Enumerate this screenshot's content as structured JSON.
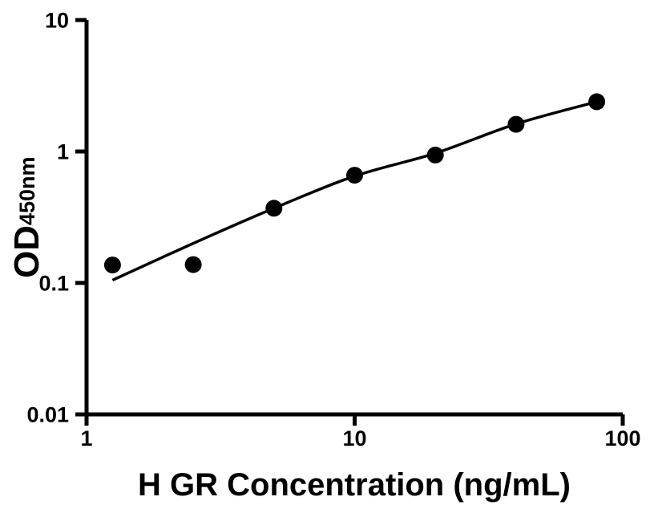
{
  "figure": {
    "background": "#ffffff",
    "foreground": "#000000"
  },
  "chart_data": {
    "type": "scatter",
    "title": "",
    "xlabel": "H GR Concentration (ng/mL)",
    "ylabel": {
      "main": "OD",
      "subscript": "450nm"
    },
    "x_scale": "log",
    "y_scale": "log",
    "xlim": [
      1,
      100
    ],
    "ylim": [
      0.01,
      10
    ],
    "x_ticks": {
      "values": [
        1,
        10,
        100
      ],
      "labels": [
        "1",
        "10",
        "100"
      ]
    },
    "y_ticks": {
      "values": [
        0.01,
        0.1,
        1,
        10
      ],
      "labels": [
        "0.01",
        "0.1",
        "1",
        "10"
      ]
    },
    "grid": false,
    "legend": null,
    "marker_color": "#000000",
    "line_color": "#000000",
    "series": [
      {
        "name": "standard-points",
        "type": "scatter",
        "marker": "filled-circle",
        "color": "#000000",
        "x": [
          1.25,
          2.5,
          5,
          10,
          20,
          40,
          80
        ],
        "y": [
          0.137,
          0.138,
          0.37,
          0.66,
          0.94,
          1.61,
          2.39
        ]
      },
      {
        "name": "fitted-curve",
        "type": "line",
        "color": "#000000",
        "x": [
          1.25,
          2.5,
          5,
          10,
          20,
          40,
          80
        ],
        "y": [
          0.105,
          0.2,
          0.37,
          0.65,
          0.97,
          1.62,
          2.39
        ]
      }
    ]
  }
}
